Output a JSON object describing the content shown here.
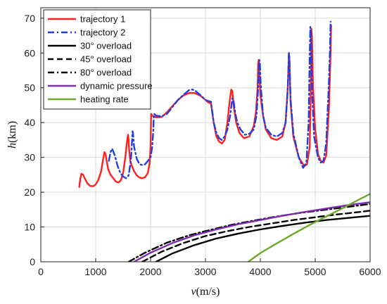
{
  "chart_data": {
    "type": "line",
    "xlabel": {
      "var": "v",
      "unit": "(m/s)"
    },
    "ylabel": {
      "var": "h",
      "unit": "(km)"
    },
    "xlim": [
      0,
      6000
    ],
    "ylim": [
      0,
      73
    ],
    "xticks": [
      0,
      1000,
      2000,
      3000,
      4000,
      5000,
      6000
    ],
    "yticks": [
      0,
      10,
      20,
      30,
      40,
      50,
      60,
      70
    ],
    "grid": true,
    "legend_position": "top-left",
    "series": [
      {
        "name": "trajectory 1",
        "color": "#ff1f1f",
        "dash": "solid",
        "x": [
          700,
          720,
          740,
          770,
          800,
          850,
          900,
          950,
          1000,
          1050,
          1100,
          1130,
          1160,
          1180,
          1200,
          1230,
          1270,
          1320,
          1370,
          1420,
          1460,
          1500,
          1540,
          1570,
          1590,
          1600,
          1610,
          1630,
          1660,
          1700,
          1750,
          1800,
          1850,
          1900,
          1950,
          1980,
          2000,
          2010,
          2030,
          2100,
          2200,
          2300,
          2400,
          2500,
          2600,
          2700,
          2800,
          2900,
          3000,
          3050,
          3100,
          3150,
          3200,
          3250,
          3300,
          3350,
          3400,
          3440,
          3470,
          3490,
          3520,
          3560,
          3620,
          3700,
          3800,
          3880,
          3920,
          3950,
          3960,
          3970,
          3980,
          4000,
          4050,
          4100,
          4200,
          4300,
          4400,
          4460,
          4500,
          4520,
          4530,
          4550,
          4600,
          4700,
          4800,
          4850,
          4900,
          4920,
          4930,
          4940,
          4960,
          5000,
          5050,
          5100,
          5150,
          5200,
          5250,
          5280,
          5290
        ],
        "y": [
          21.5,
          24.0,
          25.3,
          25.0,
          24.0,
          22.5,
          21.8,
          21.7,
          22.2,
          23.6,
          26.0,
          29.0,
          31.5,
          31.0,
          29.0,
          26.5,
          25.0,
          24.0,
          23.0,
          22.8,
          23.5,
          25.5,
          30.0,
          34.5,
          36.5,
          35.0,
          32.0,
          29.0,
          27.5,
          26.0,
          24.8,
          24.2,
          24.0,
          24.3,
          25.5,
          28.0,
          33.0,
          42.5,
          42.0,
          41.5,
          41.6,
          43.0,
          44.8,
          46.5,
          47.8,
          48.5,
          48.5,
          47.8,
          46.5,
          45.8,
          45.5,
          40.0,
          36.0,
          34.5,
          34.0,
          35.0,
          40.0,
          46.0,
          49.5,
          49.0,
          44.0,
          40.0,
          37.0,
          35.5,
          36.0,
          39.0,
          43.0,
          50.0,
          57.0,
          58.0,
          55.0,
          48.0,
          42.0,
          38.0,
          35.5,
          35.0,
          36.0,
          40.0,
          50.0,
          60.0,
          58.0,
          46.0,
          36.0,
          30.0,
          27.5,
          28.0,
          33.0,
          50.0,
          67.0,
          65.0,
          50.0,
          38.0,
          31.0,
          29.0,
          28.5,
          30.5,
          44.0,
          60.0,
          68.0
        ]
      },
      {
        "name": "trajectory 2",
        "color": "#1f3fe0",
        "dash": "dashdot",
        "x": [
          1240,
          1270,
          1300,
          1350,
          1400,
          1450,
          1500,
          1550,
          1600,
          1640,
          1660,
          1670,
          1680,
          1700,
          1750,
          1800,
          1850,
          1900,
          1950,
          2000,
          2030,
          2050,
          2060,
          2080,
          2100,
          2200,
          2300,
          2400,
          2500,
          2600,
          2700,
          2760,
          2800,
          2900,
          3000,
          3050,
          3100,
          3150,
          3200,
          3250,
          3300,
          3350,
          3400,
          3450,
          3490,
          3510,
          3540,
          3580,
          3640,
          3720,
          3800,
          3880,
          3930,
          3960,
          3980,
          3990,
          4010,
          4050,
          4100,
          4200,
          4300,
          4400,
          4460,
          4500,
          4520,
          4530,
          4550,
          4600,
          4700,
          4780,
          4840,
          4880,
          4900,
          4910,
          4920,
          4940,
          4980,
          5050,
          5100,
          5150,
          5200,
          5250,
          5270,
          5280
        ],
        "y": [
          29.0,
          31.5,
          32.5,
          30.5,
          27.5,
          25.5,
          24.5,
          24.0,
          24.8,
          29.0,
          34.0,
          37.5,
          37.0,
          33.0,
          29.5,
          28.0,
          27.8,
          28.0,
          29.0,
          30.0,
          33.0,
          38.0,
          42.5,
          42.3,
          42.0,
          41.8,
          42.5,
          44.5,
          46.5,
          48.0,
          49.3,
          49.5,
          49.3,
          48.0,
          46.5,
          46.2,
          46.0,
          40.0,
          37.0,
          35.5,
          35.0,
          36.0,
          38.0,
          42.0,
          47.0,
          46.5,
          43.0,
          40.0,
          38.0,
          36.5,
          36.8,
          38.0,
          42.0,
          50.0,
          58.0,
          57.5,
          50.0,
          42.0,
          38.5,
          36.5,
          36.0,
          37.0,
          40.0,
          50.0,
          60.0,
          59.0,
          47.0,
          37.0,
          30.0,
          27.0,
          28.5,
          40.0,
          60.0,
          67.5,
          66.0,
          50.0,
          36.0,
          30.0,
          28.5,
          29.0,
          34.0,
          52.0,
          62.0,
          69.0
        ]
      },
      {
        "name": "30° overload",
        "color": "#000000",
        "dash": "solid",
        "x": [
          2100,
          2400,
          2800,
          3200,
          3600,
          4000,
          4400,
          4800,
          5200,
          5600,
          6000
        ],
        "y": [
          0,
          2.4,
          4.8,
          6.7,
          8.1,
          9.3,
          10.3,
          11.2,
          12.0,
          12.6,
          13.2
        ]
      },
      {
        "name": "45° overload",
        "color": "#000000",
        "dash": "dashed",
        "x": [
          1850,
          2200,
          2600,
          3000,
          3400,
          3800,
          4200,
          4600,
          5000,
          5400,
          5800,
          6000
        ],
        "y": [
          0,
          2.9,
          5.4,
          7.4,
          8.8,
          10.0,
          11.0,
          12.0,
          12.8,
          13.6,
          14.3,
          14.7
        ]
      },
      {
        "name": "80° overload",
        "color": "#000000",
        "dash": "dashdot",
        "x": [
          1600,
          1900,
          2300,
          2700,
          3100,
          3500,
          3900,
          4300,
          4700,
          5100,
          5500,
          6000
        ],
        "y": [
          0,
          2.6,
          5.5,
          7.6,
          9.2,
          10.7,
          11.9,
          13.0,
          14.0,
          14.8,
          15.6,
          16.6
        ]
      },
      {
        "name": "dynamic pressure",
        "color": "#7b2fb0",
        "dash": "solid",
        "x": [
          1700,
          2000,
          2400,
          2800,
          3200,
          3600,
          4000,
          4400,
          4800,
          5200,
          5600,
          6000
        ],
        "y": [
          0,
          2.6,
          5.4,
          7.6,
          9.3,
          10.8,
          12.0,
          13.2,
          14.3,
          15.3,
          16.3,
          17.1
        ]
      },
      {
        "name": "heating rate",
        "color": "#6aaa2a",
        "dash": "solid",
        "x": [
          3780,
          4000,
          4300,
          4600,
          4900,
          5200,
          5500,
          5800,
          6000
        ],
        "y": [
          0,
          2.5,
          5.3,
          8.0,
          10.6,
          13.0,
          15.4,
          17.9,
          19.5
        ]
      }
    ]
  }
}
